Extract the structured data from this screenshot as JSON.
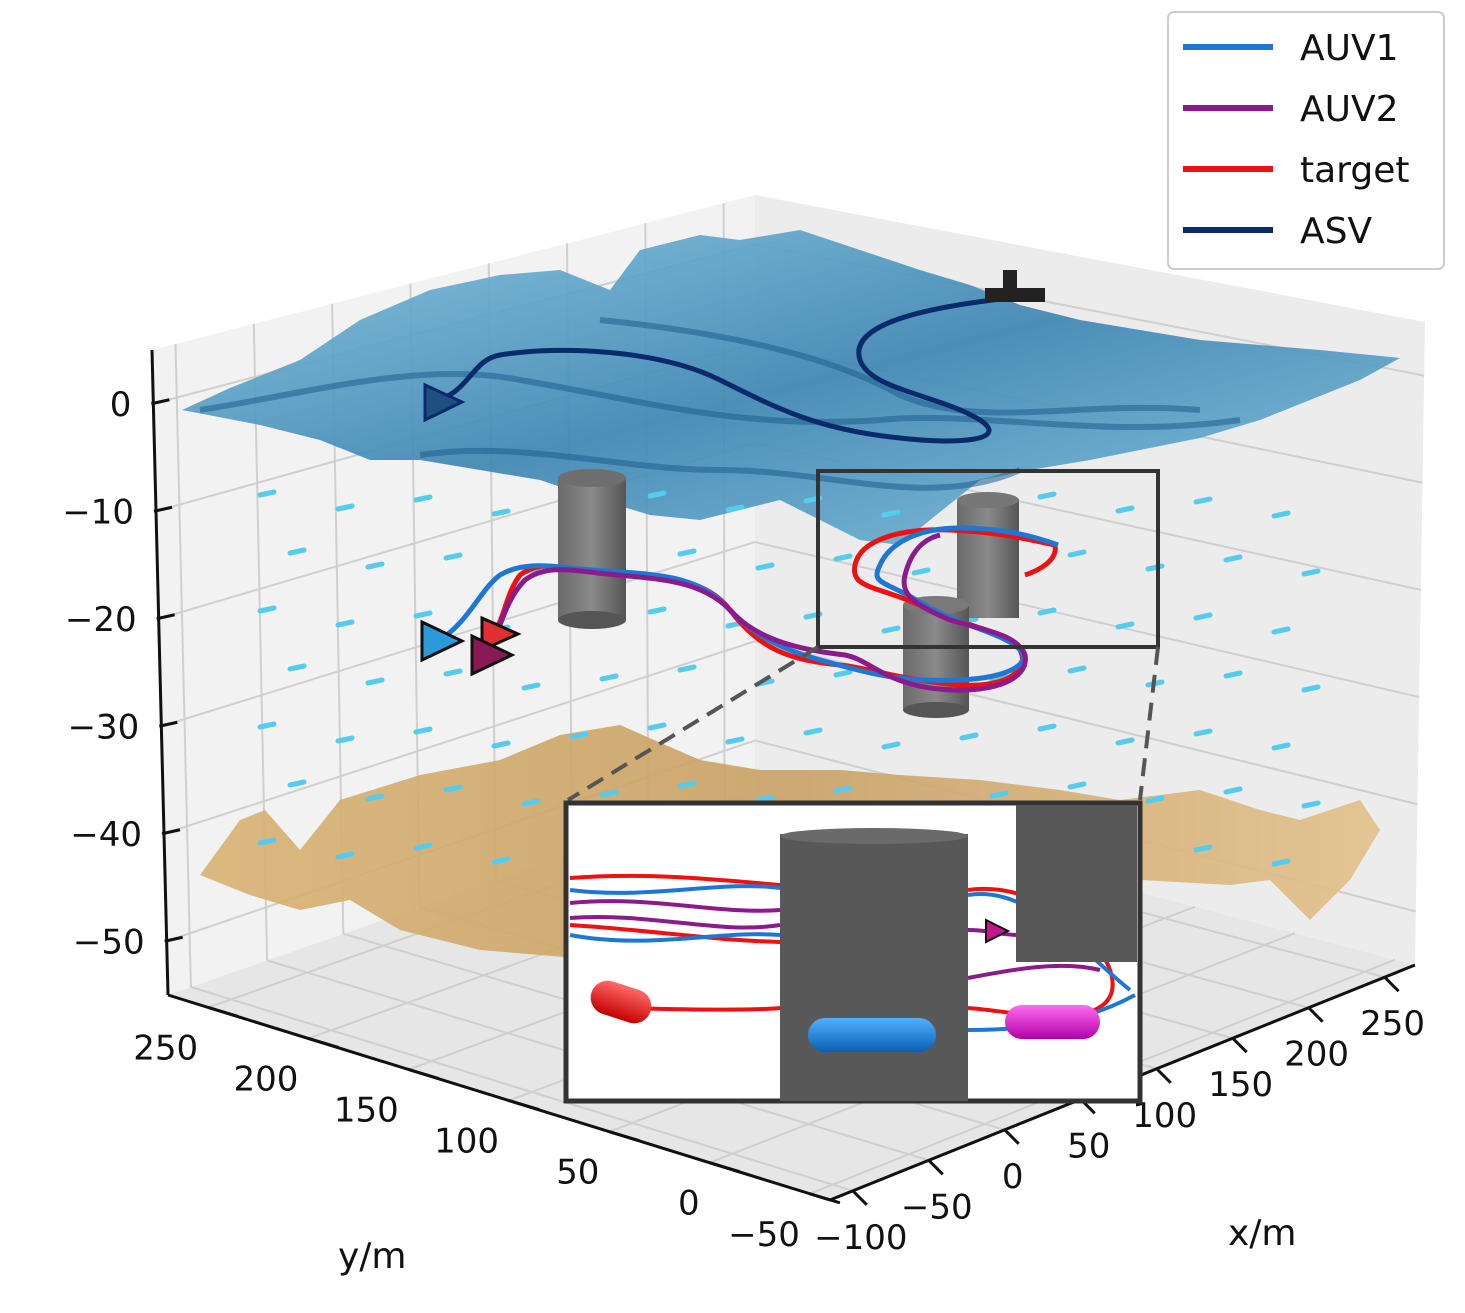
{
  "colors": {
    "AUV1": "#1f77d4",
    "AUV2": "#8b1a8b",
    "target": "#ee1111",
    "ASV": "#0b2a6b",
    "surface": "#4a90b8",
    "seabed": "#d9aa66",
    "obstacle": "#5a5a5a",
    "current_arrow": "#55ccee"
  },
  "chart_data": {
    "type": "line",
    "subtype": "3d",
    "xlabel": "x/m",
    "ylabel": "y/m",
    "zlabel": "",
    "x_ticks": [
      "−100",
      "−50",
      "0",
      "50",
      "100",
      "150",
      "200",
      "250"
    ],
    "y_ticks": [
      "250",
      "200",
      "150",
      "100",
      "50",
      "0",
      "−50"
    ],
    "z_ticks": [
      "0",
      "−10",
      "−20",
      "−30",
      "−40",
      "−50"
    ],
    "xlim": [
      -100,
      250
    ],
    "ylim": [
      -50,
      250
    ],
    "zlim": [
      -55,
      5
    ],
    "grid": true,
    "legend_position": "top-right",
    "series": [
      {
        "name": "AUV1",
        "color_key": "AUV1"
      },
      {
        "name": "AUV2",
        "color_key": "AUV2"
      },
      {
        "name": "target",
        "color_key": "target"
      },
      {
        "name": "ASV",
        "color_key": "ASV"
      }
    ],
    "inset": {
      "shown": true,
      "zoom_of": "obstacle region near x=150..250"
    }
  }
}
